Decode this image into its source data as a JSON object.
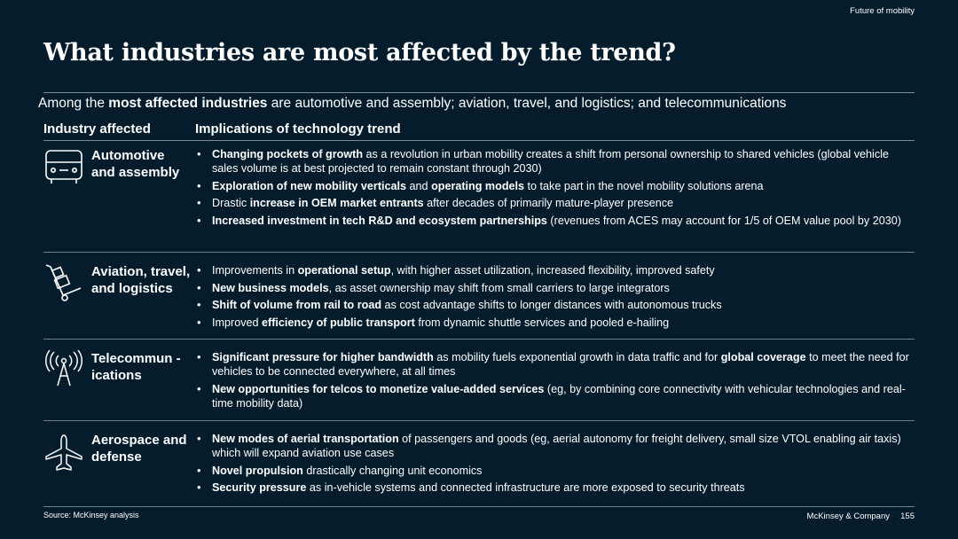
{
  "header": {
    "section_tag": "Future of mobility",
    "title": "What industries are most affected by the trend?"
  },
  "subtitle": {
    "pre": "Among the ",
    "bold": "most affected industries",
    "post": " are automotive and assembly; aviation, travel, and logistics; and telecommunications"
  },
  "table": {
    "col_industry": "Industry affected",
    "col_implications": "Implications of technology trend",
    "rows": [
      {
        "industry": "Automotive and assembly",
        "icon": "car-icon",
        "bullets": [
          [
            {
              "b": "Changing pockets of growth"
            },
            {
              "t": " as a revolution in urban mobility creates a shift from personal ownership to shared vehicles (global vehicle sales volume is at best projected to remain constant through 2030)"
            }
          ],
          [
            {
              "b": "Exploration of new mobility verticals"
            },
            {
              "t": " and "
            },
            {
              "b": "operating models"
            },
            {
              "t": " to take part in the novel mobility solutions arena"
            }
          ],
          [
            {
              "t": "Drastic "
            },
            {
              "b": "increase in OEM market entrants"
            },
            {
              "t": " after decades of primarily mature-player presence"
            }
          ],
          [
            {
              "b": "Increased investment in tech R&D and ecosystem partnerships"
            },
            {
              "t": " (revenues from ACES may account for 1/5 of OEM value pool by 2030)"
            }
          ]
        ]
      },
      {
        "industry": "Aviation, travel, and logistics",
        "icon": "hand-truck-icon",
        "bullets": [
          [
            {
              "t": "Improvements in "
            },
            {
              "b": "operational setup"
            },
            {
              "t": ", with higher asset utilization, increased flexibility, improved safety"
            }
          ],
          [
            {
              "b": "New business models"
            },
            {
              "t": ", as asset ownership may shift from small carriers to large integrators"
            }
          ],
          [
            {
              "b": "Shift of volume from rail to road"
            },
            {
              "t": " as cost advantage shifts to longer distances with autonomous trucks"
            }
          ],
          [
            {
              "t": "Improved "
            },
            {
              "b": "efficiency of public transport"
            },
            {
              "t": " from dynamic shuttle services and pooled e-hailing"
            }
          ]
        ]
      },
      {
        "industry": "Telecommun -ications",
        "icon": "antenna-icon",
        "bullets": [
          [
            {
              "b": "Significant pressure for higher bandwidth"
            },
            {
              "t": " as mobility fuels exponential growth in data traffic and for "
            },
            {
              "b": "global coverage"
            },
            {
              "t": " to meet the need for vehicles to be connected everywhere, at all times"
            }
          ],
          [
            {
              "b": "New opportunities for telcos to monetize value-added services"
            },
            {
              "t": " (eg, by combining core connectivity with vehicular technologies and real-time mobility data)"
            }
          ]
        ]
      },
      {
        "industry": "Aerospace and defense",
        "icon": "airplane-icon",
        "bullets": [
          [
            {
              "b": "New modes of aerial transportation"
            },
            {
              "t": " of passengers and goods (eg, aerial autonomy for freight delivery, small size VTOL enabling air taxis) which will expand aviation use cases"
            }
          ],
          [
            {
              "b": "Novel propulsion"
            },
            {
              "t": " drastically changing unit economics"
            }
          ],
          [
            {
              "b": "Security pressure"
            },
            {
              "t": " as in-vehicle systems and connected infrastructure are more exposed to security threats"
            }
          ]
        ]
      }
    ]
  },
  "footer": {
    "source": "Source: McKinsey analysis",
    "company": "McKinsey & Company",
    "page": "155"
  }
}
